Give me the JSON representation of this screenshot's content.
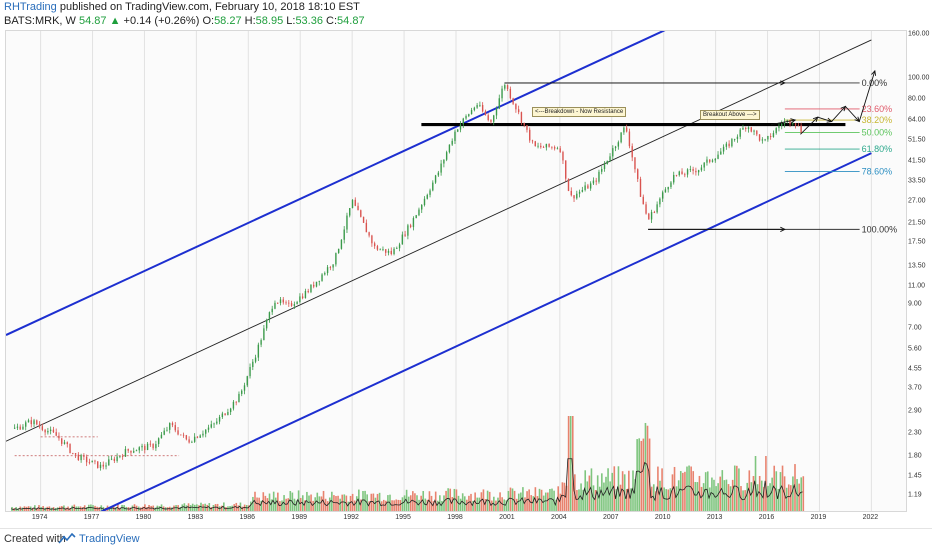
{
  "header": {
    "author": "RHTrading",
    "published": "published on TradingView.com, February 10, 2018 18:10 EST",
    "symbol": "BATS:MRK, W",
    "last": "54.87",
    "change": "+0.14 (+0.26%)",
    "o_label": "O:",
    "o": "58.27",
    "h_label": "H:",
    "h": "58.95",
    "l_label": "L:",
    "l": "53.36",
    "c_label": "C:",
    "c": "54.87"
  },
  "footer": {
    "created": "Created with",
    "brand": "TradingView"
  },
  "annotations": {
    "breakdown": "<---Breakdown  - Now Resistance",
    "breakout": "Breakout Above --->"
  },
  "colors": {
    "channel": "#1d2fd0",
    "midline": "#222222",
    "up_candle": "#3a9a4a",
    "down_candle": "#d9534f",
    "vol_up": "#7ec57e",
    "vol_down": "#e8826e"
  },
  "chart_data": {
    "type": "candlestick",
    "symbol": "BATS:MRK",
    "interval": "W",
    "y_scale": "log",
    "ylim": [
      1.0,
      165
    ],
    "xlim": [
      1972.0,
      2024.0
    ],
    "y_ticks": [
      "160.00",
      "100.00",
      "80.00",
      "64.00",
      "51.50",
      "41.50",
      "33.50",
      "27.00",
      "21.50",
      "17.50",
      "13.50",
      "11.00",
      "9.00",
      "7.00",
      "5.60",
      "4.55",
      "3.70",
      "2.90",
      "2.30",
      "1.80",
      "1.45",
      "1.19"
    ],
    "x_ticks": [
      "1974",
      "1977",
      "1980",
      "1983",
      "1986",
      "1989",
      "1992",
      "1995",
      "1998",
      "2001",
      "2004",
      "2007",
      "2010",
      "2013",
      "2016",
      "2019",
      "2022"
    ],
    "price_path": [
      {
        "x": 1972.5,
        "y": 2.4
      },
      {
        "x": 1973.5,
        "y": 2.6
      },
      {
        "x": 1975.0,
        "y": 2.2
      },
      {
        "x": 1976.0,
        "y": 1.8
      },
      {
        "x": 1977.5,
        "y": 1.6
      },
      {
        "x": 1979.0,
        "y": 1.9
      },
      {
        "x": 1980.5,
        "y": 2.0
      },
      {
        "x": 1981.5,
        "y": 2.5
      },
      {
        "x": 1982.5,
        "y": 2.1
      },
      {
        "x": 1984.0,
        "y": 2.5
      },
      {
        "x": 1985.5,
        "y": 3.4
      },
      {
        "x": 1986.5,
        "y": 5.5
      },
      {
        "x": 1987.5,
        "y": 9.5
      },
      {
        "x": 1988.3,
        "y": 8.8
      },
      {
        "x": 1989.5,
        "y": 10.5
      },
      {
        "x": 1991.0,
        "y": 14.5
      },
      {
        "x": 1992.0,
        "y": 27.0
      },
      {
        "x": 1993.3,
        "y": 16.5
      },
      {
        "x": 1994.3,
        "y": 15.5
      },
      {
        "x": 1995.5,
        "y": 22.0
      },
      {
        "x": 1997.0,
        "y": 37.0
      },
      {
        "x": 1998.0,
        "y": 58.0
      },
      {
        "x": 1999.2,
        "y": 76.0
      },
      {
        "x": 2000.0,
        "y": 62.0
      },
      {
        "x": 2000.8,
        "y": 95.0
      },
      {
        "x": 2001.5,
        "y": 72.0
      },
      {
        "x": 2002.5,
        "y": 48.0
      },
      {
        "x": 2004.0,
        "y": 48.0
      },
      {
        "x": 2004.6,
        "y": 28.0
      },
      {
        "x": 2006.0,
        "y": 33.0
      },
      {
        "x": 2007.8,
        "y": 60.0
      },
      {
        "x": 2008.7,
        "y": 28.0
      },
      {
        "x": 2009.1,
        "y": 22.0
      },
      {
        "x": 2010.5,
        "y": 35.0
      },
      {
        "x": 2012.0,
        "y": 38.0
      },
      {
        "x": 2013.5,
        "y": 47.0
      },
      {
        "x": 2014.8,
        "y": 61.0
      },
      {
        "x": 2015.8,
        "y": 50.0
      },
      {
        "x": 2016.8,
        "y": 62.0
      },
      {
        "x": 2017.5,
        "y": 64.0
      },
      {
        "x": 2018.1,
        "y": 54.87
      }
    ],
    "volume_bars": "relative volume histogram along bottom, spikes near 2004 and 2008",
    "lines": [
      {
        "name": "channel-upper",
        "from": {
          "x": 1972.0,
          "y": 6.5
        },
        "to": {
          "x": 2022.0,
          "y": 460
        }
      },
      {
        "name": "channel-lower",
        "from": {
          "x": 1972.0,
          "y": 0.62
        },
        "to": {
          "x": 2022.0,
          "y": 45.0
        }
      },
      {
        "name": "midline",
        "from": {
          "x": 1972.0,
          "y": 2.1
        },
        "to": {
          "x": 2022.0,
          "y": 150
        }
      },
      {
        "name": "resistance",
        "from": {
          "x": 1996.0,
          "y": 61.0
        },
        "to": {
          "x": 2020.5,
          "y": 61.0
        }
      }
    ],
    "fibonacci": [
      {
        "label": "0.00%",
        "value": 95.0,
        "color": "#333333"
      },
      {
        "label": "23.60%",
        "value": 72.0,
        "color": "#e05a6a"
      },
      {
        "label": "38.20%",
        "value": 64.0,
        "color": "#c7b630"
      },
      {
        "label": "50.00%",
        "value": 56.0,
        "color": "#5cc45c"
      },
      {
        "label": "61.80%",
        "value": 47.0,
        "color": "#2ca88c"
      },
      {
        "label": "78.60%",
        "value": 37.0,
        "color": "#2c8fc2"
      },
      {
        "label": "100.00%",
        "value": 20.0,
        "color": "#333333"
      }
    ]
  }
}
